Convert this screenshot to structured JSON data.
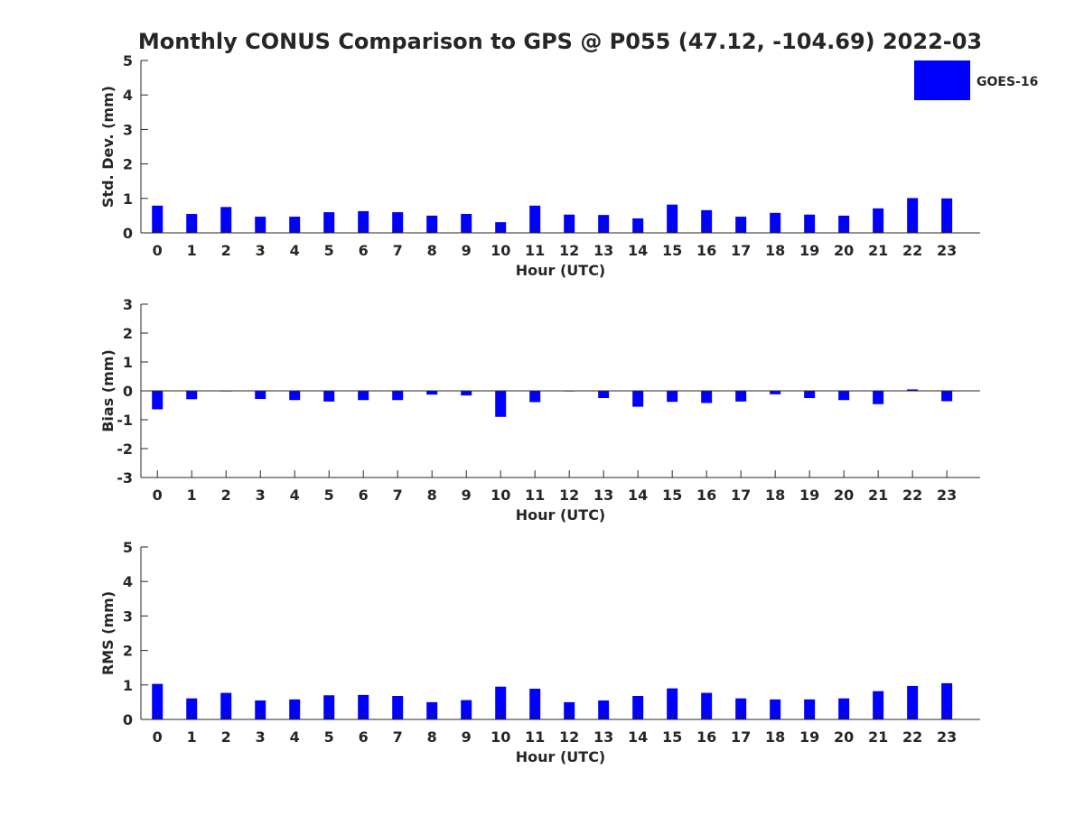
{
  "title": "Monthly CONUS Comparison to GPS @ P055 (47.12, -104.69) 2022-03",
  "legend": {
    "label": "GOES-16",
    "color": "#0000ff",
    "placement": "top-right"
  },
  "chart_data": [
    {
      "type": "bar",
      "xlabel": "Hour (UTC)",
      "ylabel": "Std. Dev. (mm)",
      "ylim": [
        0,
        5
      ],
      "yticks": [
        0,
        1,
        2,
        3,
        4,
        5
      ],
      "categories": [
        "0",
        "1",
        "2",
        "3",
        "4",
        "5",
        "6",
        "7",
        "8",
        "9",
        "10",
        "11",
        "12",
        "13",
        "14",
        "15",
        "16",
        "17",
        "18",
        "19",
        "20",
        "21",
        "22",
        "23"
      ],
      "series": [
        {
          "name": "GOES-16",
          "color": "#0000ff",
          "values": [
            0.79,
            0.55,
            0.75,
            0.47,
            0.47,
            0.6,
            0.63,
            0.6,
            0.5,
            0.55,
            0.31,
            0.79,
            0.53,
            0.52,
            0.42,
            0.82,
            0.66,
            0.47,
            0.58,
            0.53,
            0.5,
            0.71,
            1.01,
            1.0
          ]
        }
      ],
      "grid": false
    },
    {
      "type": "bar",
      "xlabel": "Hour (UTC)",
      "ylabel": "Bias (mm)",
      "ylim": [
        -3,
        3
      ],
      "yticks": [
        -3,
        -2,
        -1,
        0,
        1,
        2,
        3
      ],
      "categories": [
        "0",
        "1",
        "2",
        "3",
        "4",
        "5",
        "6",
        "7",
        "8",
        "9",
        "10",
        "11",
        "12",
        "13",
        "14",
        "15",
        "16",
        "17",
        "18",
        "19",
        "20",
        "21",
        "22",
        "23"
      ],
      "series": [
        {
          "name": "GOES-16",
          "color": "#0000ff",
          "values": [
            -0.64,
            -0.29,
            -0.02,
            -0.28,
            -0.32,
            -0.37,
            -0.32,
            -0.32,
            -0.13,
            -0.16,
            -0.9,
            -0.39,
            -0.02,
            -0.25,
            -0.55,
            -0.38,
            -0.42,
            -0.37,
            -0.12,
            -0.25,
            -0.32,
            -0.46,
            0.05,
            -0.36
          ]
        }
      ],
      "grid": false
    },
    {
      "type": "bar",
      "xlabel": "Hour (UTC)",
      "ylabel": "RMS (mm)",
      "ylim": [
        0,
        5
      ],
      "yticks": [
        0,
        1,
        2,
        3,
        4,
        5
      ],
      "categories": [
        "0",
        "1",
        "2",
        "3",
        "4",
        "5",
        "6",
        "7",
        "8",
        "9",
        "10",
        "11",
        "12",
        "13",
        "14",
        "15",
        "16",
        "17",
        "18",
        "19",
        "20",
        "21",
        "22",
        "23"
      ],
      "series": [
        {
          "name": "GOES-16",
          "color": "#0000ff",
          "values": [
            1.03,
            0.61,
            0.77,
            0.55,
            0.58,
            0.7,
            0.71,
            0.68,
            0.5,
            0.56,
            0.95,
            0.89,
            0.5,
            0.55,
            0.68,
            0.9,
            0.77,
            0.61,
            0.58,
            0.58,
            0.61,
            0.82,
            0.97,
            1.05
          ]
        }
      ],
      "grid": false
    }
  ]
}
